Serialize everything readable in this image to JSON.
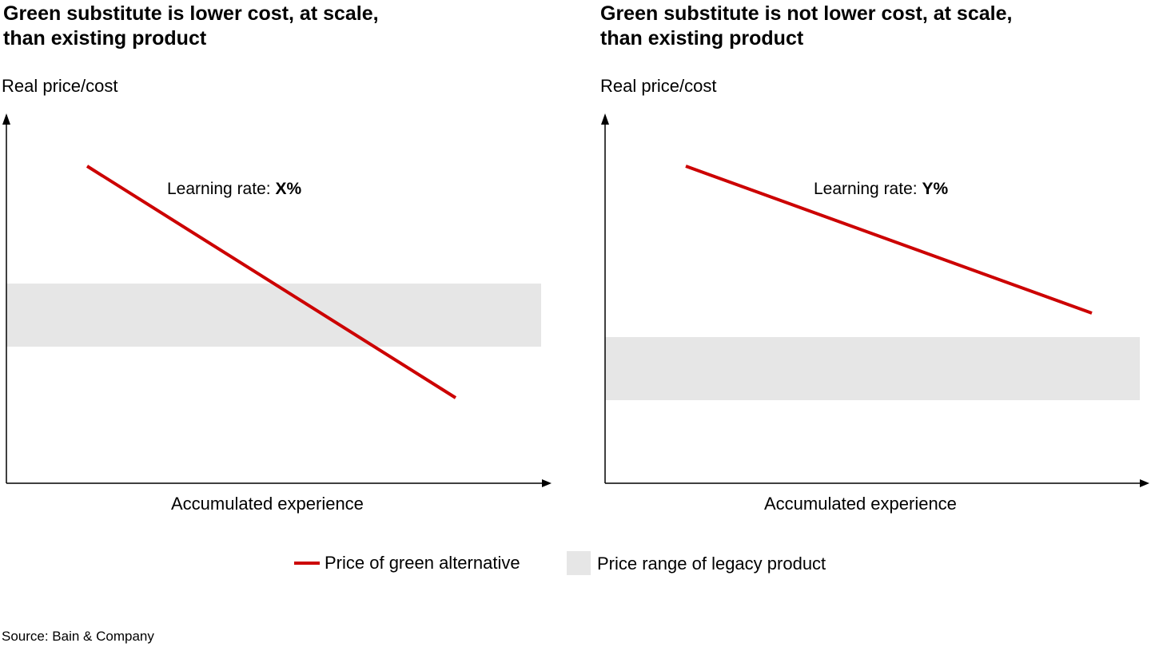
{
  "colors": {
    "line": "#cc0000",
    "band": "#e6e6e6",
    "axis": "#000000"
  },
  "panels": [
    {
      "title_line1": "Green substitute is lower cost, at scale,",
      "title_line2": "than existing product",
      "y_label": "Real price/cost",
      "x_label": "Accumulated experience",
      "learning_rate_prefix": "Learning rate: ",
      "learning_rate_value": "X%"
    },
    {
      "title_line1": "Green substitute is not lower cost, at scale,",
      "title_line2": "than existing product",
      "y_label": "Real price/cost",
      "x_label": "Accumulated experience",
      "learning_rate_prefix": "Learning rate: ",
      "learning_rate_value": "Y%"
    }
  ],
  "legend": {
    "line_label": "Price of green alternative",
    "band_label": "Price range of legacy product"
  },
  "source": "Source: Bain & Company",
  "chart_data": [
    {
      "type": "line",
      "title": "Green substitute is lower cost, at scale, than existing product",
      "xlabel": "Accumulated experience",
      "ylabel": "Real price/cost",
      "series": [
        {
          "name": "Price of green alternative",
          "trend": "steep decline, crosses below legacy price range"
        }
      ],
      "band": {
        "name": "Price range of legacy product"
      },
      "annotation": "Learning rate: X%"
    },
    {
      "type": "line",
      "title": "Green substitute is not lower cost, at scale, than existing product",
      "xlabel": "Accumulated experience",
      "ylabel": "Real price/cost",
      "series": [
        {
          "name": "Price of green alternative",
          "trend": "gentle decline, stays above legacy price range"
        }
      ],
      "band": {
        "name": "Price range of legacy product"
      },
      "annotation": "Learning rate: Y%"
    }
  ]
}
